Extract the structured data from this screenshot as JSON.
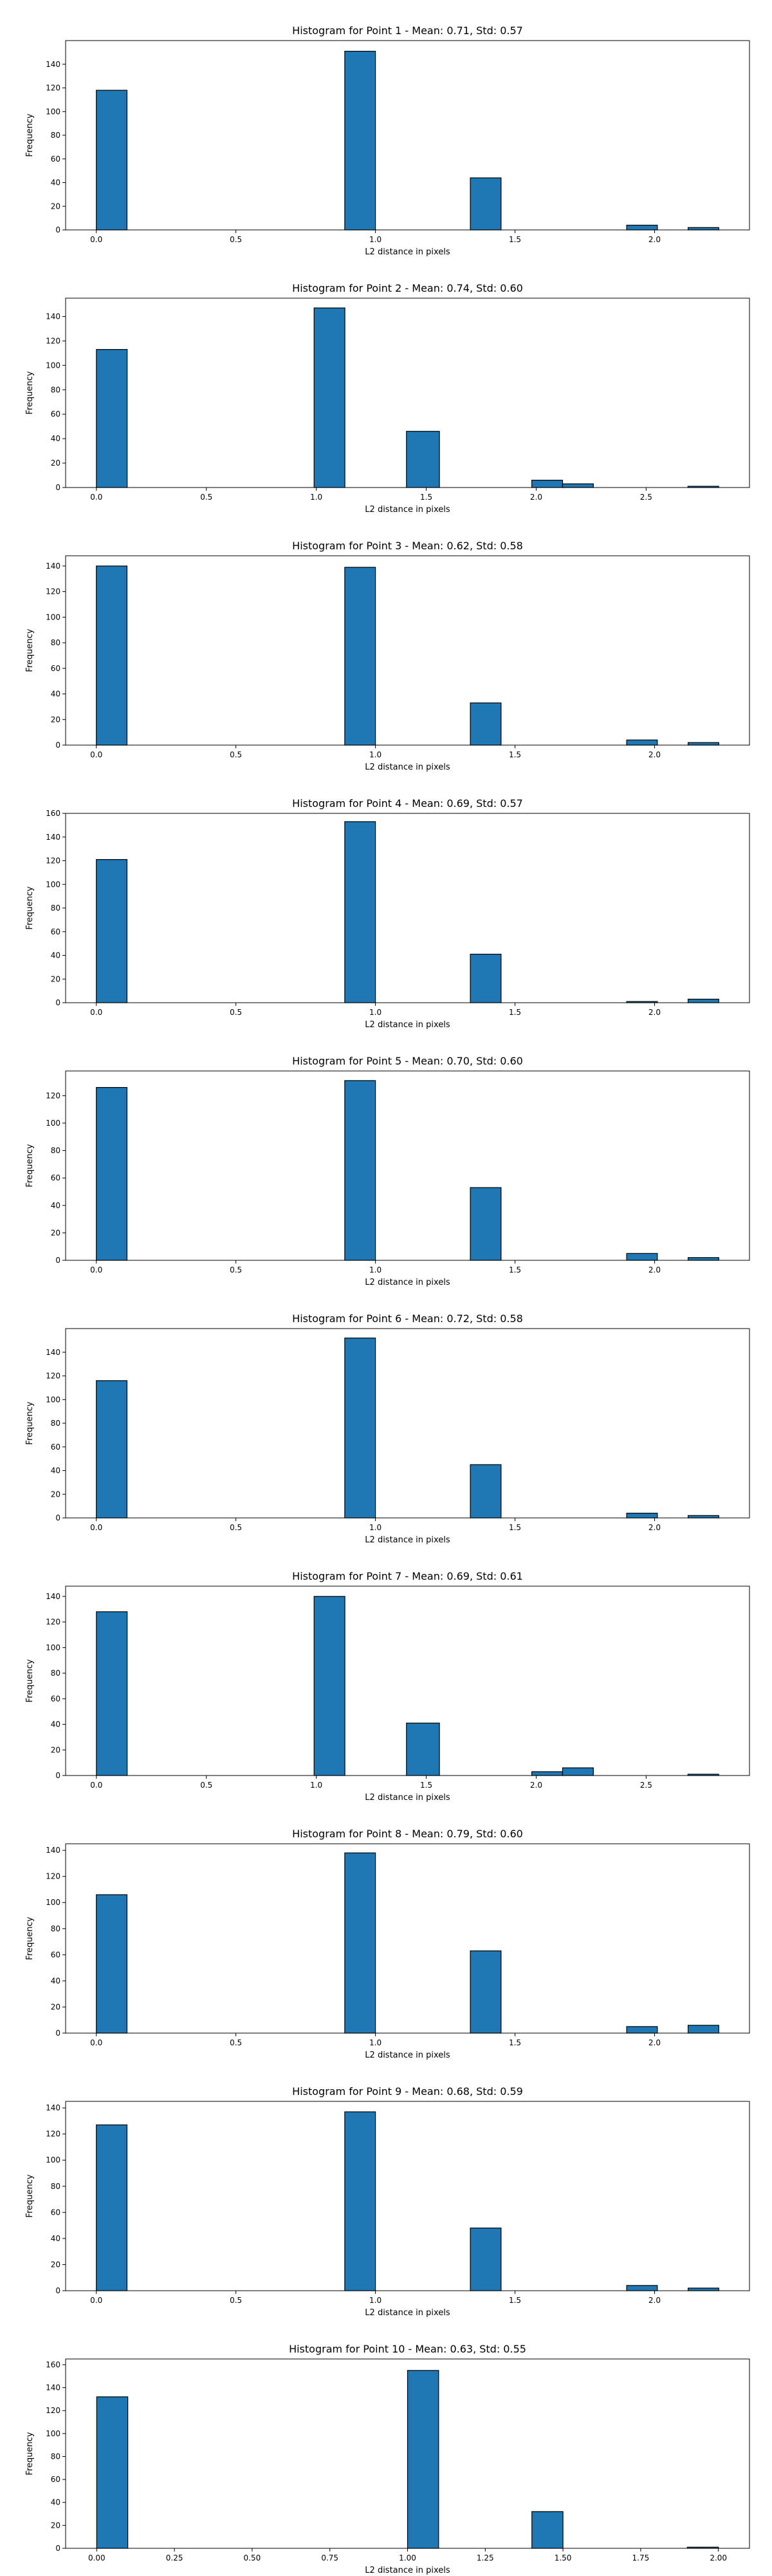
{
  "style": {
    "bar_color": "#1f77b4",
    "edge_color": "#000000"
  },
  "chart_data": [
    {
      "type": "bar",
      "title": "Histogram for Point 1 - Mean: 0.71, Std: 0.57",
      "xlabel": "L2 distance in pixels",
      "ylabel": "Frequency",
      "xlim": [
        -0.11,
        2.34
      ],
      "ylim": [
        0,
        160
      ],
      "xticks": [
        0.0,
        0.5,
        1.0,
        1.5,
        2.0
      ],
      "xtick_labels": [
        "0.0",
        "0.5",
        "1.0",
        "1.5",
        "2.0"
      ],
      "yticks": [
        0,
        20,
        40,
        60,
        80,
        100,
        120,
        140
      ],
      "ytick_labels": [
        "0",
        "20",
        "40",
        "60",
        "80",
        "100",
        "120",
        "140"
      ],
      "bins": [
        {
          "start": 0.0,
          "end": 0.11,
          "count": 118
        },
        {
          "start": 0.89,
          "end": 1.0,
          "count": 151
        },
        {
          "start": 1.34,
          "end": 1.45,
          "count": 44
        },
        {
          "start": 1.9,
          "end": 2.01,
          "count": 4
        },
        {
          "start": 2.12,
          "end": 2.23,
          "count": 2
        }
      ]
    },
    {
      "type": "bar",
      "title": "Histogram for Point 2 - Mean: 0.74, Std: 0.60",
      "xlabel": "L2 distance in pixels",
      "ylabel": "Frequency",
      "xlim": [
        -0.14,
        2.97
      ],
      "ylim": [
        0,
        155
      ],
      "xticks": [
        0.0,
        0.5,
        1.0,
        1.5,
        2.0,
        2.5
      ],
      "xtick_labels": [
        "0.0",
        "0.5",
        "1.0",
        "1.5",
        "2.0",
        "2.5"
      ],
      "yticks": [
        0,
        20,
        40,
        60,
        80,
        100,
        120,
        140
      ],
      "ytick_labels": [
        "0",
        "20",
        "40",
        "60",
        "80",
        "100",
        "120",
        "140"
      ],
      "bins": [
        {
          "start": 0.0,
          "end": 0.14,
          "count": 113
        },
        {
          "start": 0.99,
          "end": 1.13,
          "count": 147
        },
        {
          "start": 1.41,
          "end": 1.56,
          "count": 46
        },
        {
          "start": 1.98,
          "end": 2.12,
          "count": 6
        },
        {
          "start": 2.12,
          "end": 2.26,
          "count": 3
        },
        {
          "start": 2.69,
          "end": 2.83,
          "count": 1
        }
      ]
    },
    {
      "type": "bar",
      "title": "Histogram for Point 3 - Mean: 0.62, Std: 0.58",
      "xlabel": "L2 distance in pixels",
      "ylabel": "Frequency",
      "xlim": [
        -0.11,
        2.34
      ],
      "ylim": [
        0,
        148
      ],
      "xticks": [
        0.0,
        0.5,
        1.0,
        1.5,
        2.0
      ],
      "xtick_labels": [
        "0.0",
        "0.5",
        "1.0",
        "1.5",
        "2.0"
      ],
      "yticks": [
        0,
        20,
        40,
        60,
        80,
        100,
        120,
        140
      ],
      "ytick_labels": [
        "0",
        "20",
        "40",
        "60",
        "80",
        "100",
        "120",
        "140"
      ],
      "bins": [
        {
          "start": 0.0,
          "end": 0.11,
          "count": 140
        },
        {
          "start": 0.89,
          "end": 1.0,
          "count": 139
        },
        {
          "start": 1.34,
          "end": 1.45,
          "count": 33
        },
        {
          "start": 1.9,
          "end": 2.01,
          "count": 4
        },
        {
          "start": 2.12,
          "end": 2.23,
          "count": 2
        }
      ]
    },
    {
      "type": "bar",
      "title": "Histogram for Point 4 - Mean: 0.69, Std: 0.57",
      "xlabel": "L2 distance in pixels",
      "ylabel": "Frequency",
      "xlim": [
        -0.11,
        2.34
      ],
      "ylim": [
        0,
        160
      ],
      "xticks": [
        0.0,
        0.5,
        1.0,
        1.5,
        2.0
      ],
      "xtick_labels": [
        "0.0",
        "0.5",
        "1.0",
        "1.5",
        "2.0"
      ],
      "yticks": [
        0,
        20,
        40,
        60,
        80,
        100,
        120,
        140,
        160
      ],
      "ytick_labels": [
        "0",
        "20",
        "40",
        "60",
        "80",
        "100",
        "120",
        "140",
        "160"
      ],
      "bins": [
        {
          "start": 0.0,
          "end": 0.11,
          "count": 121
        },
        {
          "start": 0.89,
          "end": 1.0,
          "count": 153
        },
        {
          "start": 1.34,
          "end": 1.45,
          "count": 41
        },
        {
          "start": 1.9,
          "end": 2.01,
          "count": 1
        },
        {
          "start": 2.12,
          "end": 2.23,
          "count": 3
        }
      ]
    },
    {
      "type": "bar",
      "title": "Histogram for Point 5 - Mean: 0.70, Std: 0.60",
      "xlabel": "L2 distance in pixels",
      "ylabel": "Frequency",
      "xlim": [
        -0.11,
        2.34
      ],
      "ylim": [
        0,
        138
      ],
      "xticks": [
        0.0,
        0.5,
        1.0,
        1.5,
        2.0
      ],
      "xtick_labels": [
        "0.0",
        "0.5",
        "1.0",
        "1.5",
        "2.0"
      ],
      "yticks": [
        0,
        20,
        40,
        60,
        80,
        100,
        120
      ],
      "ytick_labels": [
        "0",
        "20",
        "40",
        "60",
        "80",
        "100",
        "120"
      ],
      "bins": [
        {
          "start": 0.0,
          "end": 0.11,
          "count": 126
        },
        {
          "start": 0.89,
          "end": 1.0,
          "count": 131
        },
        {
          "start": 1.34,
          "end": 1.45,
          "count": 53
        },
        {
          "start": 1.9,
          "end": 2.01,
          "count": 5
        },
        {
          "start": 2.12,
          "end": 2.23,
          "count": 2
        }
      ]
    },
    {
      "type": "bar",
      "title": "Histogram for Point 6 - Mean: 0.72, Std: 0.58",
      "xlabel": "L2 distance in pixels",
      "ylabel": "Frequency",
      "xlim": [
        -0.11,
        2.34
      ],
      "ylim": [
        0,
        160
      ],
      "xticks": [
        0.0,
        0.5,
        1.0,
        1.5,
        2.0
      ],
      "xtick_labels": [
        "0.0",
        "0.5",
        "1.0",
        "1.5",
        "2.0"
      ],
      "yticks": [
        0,
        20,
        40,
        60,
        80,
        100,
        120,
        140
      ],
      "ytick_labels": [
        "0",
        "20",
        "40",
        "60",
        "80",
        "100",
        "120",
        "140"
      ],
      "bins": [
        {
          "start": 0.0,
          "end": 0.11,
          "count": 116
        },
        {
          "start": 0.89,
          "end": 1.0,
          "count": 152
        },
        {
          "start": 1.34,
          "end": 1.45,
          "count": 45
        },
        {
          "start": 1.9,
          "end": 2.01,
          "count": 4
        },
        {
          "start": 2.12,
          "end": 2.23,
          "count": 2
        }
      ]
    },
    {
      "type": "bar",
      "title": "Histogram for Point 7 - Mean: 0.69, Std: 0.61",
      "xlabel": "L2 distance in pixels",
      "ylabel": "Frequency",
      "xlim": [
        -0.14,
        2.97
      ],
      "ylim": [
        0,
        148
      ],
      "xticks": [
        0.0,
        0.5,
        1.0,
        1.5,
        2.0,
        2.5
      ],
      "xtick_labels": [
        "0.0",
        "0.5",
        "1.0",
        "1.5",
        "2.0",
        "2.5"
      ],
      "yticks": [
        0,
        20,
        40,
        60,
        80,
        100,
        120,
        140
      ],
      "ytick_labels": [
        "0",
        "20",
        "40",
        "60",
        "80",
        "100",
        "120",
        "140"
      ],
      "bins": [
        {
          "start": 0.0,
          "end": 0.14,
          "count": 128
        },
        {
          "start": 0.99,
          "end": 1.13,
          "count": 140
        },
        {
          "start": 1.41,
          "end": 1.56,
          "count": 41
        },
        {
          "start": 1.98,
          "end": 2.12,
          "count": 3
        },
        {
          "start": 2.12,
          "end": 2.26,
          "count": 6
        },
        {
          "start": 2.69,
          "end": 2.83,
          "count": 1
        }
      ]
    },
    {
      "type": "bar",
      "title": "Histogram for Point 8 - Mean: 0.79, Std: 0.60",
      "xlabel": "L2 distance in pixels",
      "ylabel": "Frequency",
      "xlim": [
        -0.11,
        2.34
      ],
      "ylim": [
        0,
        145
      ],
      "xticks": [
        0.0,
        0.5,
        1.0,
        1.5,
        2.0
      ],
      "xtick_labels": [
        "0.0",
        "0.5",
        "1.0",
        "1.5",
        "2.0"
      ],
      "yticks": [
        0,
        20,
        40,
        60,
        80,
        100,
        120,
        140
      ],
      "ytick_labels": [
        "0",
        "20",
        "40",
        "60",
        "80",
        "100",
        "120",
        "140"
      ],
      "bins": [
        {
          "start": 0.0,
          "end": 0.11,
          "count": 106
        },
        {
          "start": 0.89,
          "end": 1.0,
          "count": 138
        },
        {
          "start": 1.34,
          "end": 1.45,
          "count": 63
        },
        {
          "start": 1.9,
          "end": 2.01,
          "count": 5
        },
        {
          "start": 2.12,
          "end": 2.23,
          "count": 6
        }
      ]
    },
    {
      "type": "bar",
      "title": "Histogram for Point 9 - Mean: 0.68, Std: 0.59",
      "xlabel": "L2 distance in pixels",
      "ylabel": "Frequency",
      "xlim": [
        -0.11,
        2.34
      ],
      "ylim": [
        0,
        145
      ],
      "xticks": [
        0.0,
        0.5,
        1.0,
        1.5,
        2.0
      ],
      "xtick_labels": [
        "0.0",
        "0.5",
        "1.0",
        "1.5",
        "2.0"
      ],
      "yticks": [
        0,
        20,
        40,
        60,
        80,
        100,
        120,
        140
      ],
      "ytick_labels": [
        "0",
        "20",
        "40",
        "60",
        "80",
        "100",
        "120",
        "140"
      ],
      "bins": [
        {
          "start": 0.0,
          "end": 0.11,
          "count": 127
        },
        {
          "start": 0.89,
          "end": 1.0,
          "count": 137
        },
        {
          "start": 1.34,
          "end": 1.45,
          "count": 48
        },
        {
          "start": 1.9,
          "end": 2.01,
          "count": 4
        },
        {
          "start": 2.12,
          "end": 2.23,
          "count": 2
        }
      ]
    },
    {
      "type": "bar",
      "title": "Histogram for Point 10 - Mean: 0.63, Std: 0.55",
      "xlabel": "L2 distance in pixels",
      "ylabel": "Frequency",
      "xlim": [
        -0.1,
        2.1
      ],
      "ylim": [
        0,
        165
      ],
      "xticks": [
        0.0,
        0.25,
        0.5,
        0.75,
        1.0,
        1.25,
        1.5,
        1.75,
        2.0
      ],
      "xtick_labels": [
        "0.00",
        "0.25",
        "0.50",
        "0.75",
        "1.00",
        "1.25",
        "1.50",
        "1.75",
        "2.00"
      ],
      "yticks": [
        0,
        20,
        40,
        60,
        80,
        100,
        120,
        140,
        160
      ],
      "ytick_labels": [
        "0",
        "20",
        "40",
        "60",
        "80",
        "100",
        "120",
        "140",
        "160"
      ],
      "bins": [
        {
          "start": 0.0,
          "end": 0.1,
          "count": 132
        },
        {
          "start": 1.0,
          "end": 1.1,
          "count": 155
        },
        {
          "start": 1.4,
          "end": 1.5,
          "count": 32
        },
        {
          "start": 1.9,
          "end": 2.0,
          "count": 1
        }
      ]
    }
  ]
}
